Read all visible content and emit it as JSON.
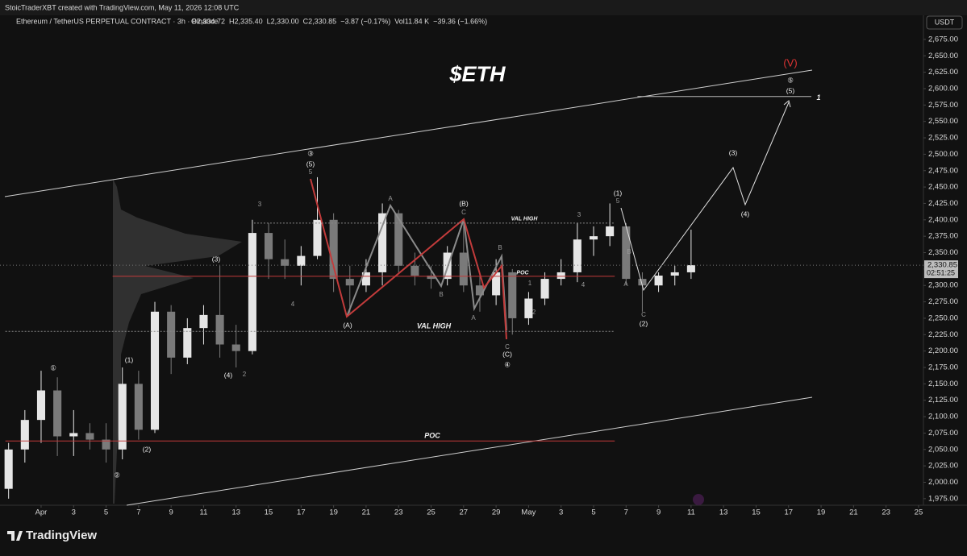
{
  "chart_data": {
    "type": "candlestick",
    "credit": "StoicTraderXBT created with TradingView.com, May 11, 2026 12:08 UTC",
    "symbol": "Ethereum / TetherUS PERPETUAL CONTRACT · 3h · Binance",
    "ohlc_text": [
      "O2,334.72",
      "H2,335.40",
      "L2,330.00",
      "C2,330.85",
      "−3.87 (−0.17%)",
      "Vol11.84 K",
      "−39.36 (−1.66%)"
    ],
    "currency": "USDT",
    "logo": "TradingView",
    "countdown": "02:51:25",
    "last_price": {
      "value": 2330.85,
      "label": "2,330.85"
    },
    "title": "$ETH",
    "x": [
      -2,
      -1,
      0,
      1,
      2,
      3,
      4,
      5,
      6,
      7,
      8,
      9,
      10,
      11,
      12,
      13,
      14,
      15,
      16,
      17,
      18,
      19,
      20,
      21,
      22,
      23,
      24,
      25,
      26,
      27,
      28,
      29,
      30,
      31,
      32,
      33,
      34,
      35,
      36,
      37,
      38,
      39,
      40
    ],
    "open": [
      1990,
      2050,
      2095,
      2140,
      2070,
      2075,
      2065,
      2050,
      2150,
      2080,
      2260,
      2190,
      2235,
      2255,
      2210,
      2200,
      2380,
      2340,
      2330,
      2345,
      2400,
      2310,
      2300,
      2320,
      2410,
      2330,
      2315,
      2310,
      2350,
      2300,
      2285,
      2320,
      2250,
      2280,
      2310,
      2320,
      2370,
      2375,
      2390,
      2310,
      2300,
      2315,
      2320
    ],
    "high": [
      2060,
      2110,
      2170,
      2160,
      2110,
      2090,
      2090,
      2175,
      2170,
      2275,
      2270,
      2250,
      2270,
      2330,
      2240,
      2400,
      2395,
      2370,
      2360,
      2465,
      2410,
      2330,
      2340,
      2425,
      2415,
      2350,
      2330,
      2360,
      2400,
      2320,
      2340,
      2325,
      2290,
      2320,
      2340,
      2395,
      2390,
      2425,
      2395,
      2320,
      2320,
      2330,
      2385
    ],
    "low": [
      1975,
      2030,
      2060,
      2040,
      2040,
      2050,
      2030,
      2035,
      2065,
      2075,
      2165,
      2180,
      2210,
      2190,
      2175,
      2195,
      2310,
      2310,
      2300,
      2340,
      2290,
      2255,
      2290,
      2300,
      2320,
      2300,
      2295,
      2300,
      2290,
      2260,
      2270,
      2225,
      2240,
      2270,
      2300,
      2305,
      2345,
      2360,
      2300,
      2260,
      2290,
      2300,
      2310
    ],
    "close": [
      2050,
      2095,
      2140,
      2070,
      2075,
      2065,
      2050,
      2150,
      2080,
      2260,
      2190,
      2235,
      2255,
      2210,
      2200,
      2380,
      2340,
      2330,
      2345,
      2400,
      2310,
      2300,
      2320,
      2410,
      2330,
      2315,
      2310,
      2350,
      2300,
      2285,
      2320,
      2250,
      2280,
      2310,
      2320,
      2370,
      2375,
      2390,
      2310,
      2300,
      2315,
      2320,
      2330.85
    ],
    "up_color": "#e6e6e6",
    "down_color": "#7a7a7a",
    "xlim": [
      -2.53,
      54.3
    ],
    "xticks": [
      {
        "value": 0,
        "label": "Apr"
      },
      {
        "value": 2,
        "label": "3"
      },
      {
        "value": 4,
        "label": "5"
      },
      {
        "value": 6,
        "label": "7"
      },
      {
        "value": 8,
        "label": "9"
      },
      {
        "value": 10,
        "label": "11"
      },
      {
        "value": 12,
        "label": "13"
      },
      {
        "value": 14,
        "label": "15"
      },
      {
        "value": 16,
        "label": "17"
      },
      {
        "value": 18,
        "label": "19"
      },
      {
        "value": 20,
        "label": "21"
      },
      {
        "value": 22,
        "label": "23"
      },
      {
        "value": 24,
        "label": "25"
      },
      {
        "value": 26,
        "label": "27"
      },
      {
        "value": 28,
        "label": "29"
      },
      {
        "value": 30,
        "label": "May"
      },
      {
        "value": 32,
        "label": "3"
      },
      {
        "value": 34,
        "label": "5"
      },
      {
        "value": 36,
        "label": "7"
      },
      {
        "value": 38,
        "label": "9"
      },
      {
        "value": 40,
        "label": "11"
      },
      {
        "value": 42,
        "label": "13"
      },
      {
        "value": 44,
        "label": "15"
      },
      {
        "value": 46,
        "label": "17"
      },
      {
        "value": 48,
        "label": "19"
      },
      {
        "value": 50,
        "label": "21"
      },
      {
        "value": 52,
        "label": "23"
      },
      {
        "value": 54,
        "label": "25"
      }
    ],
    "ylim": [
      1965,
      2689.6
    ],
    "yticks": [
      {
        "value": 1975,
        "label": "1,975.00"
      },
      {
        "value": 2000,
        "label": "2,000.00"
      },
      {
        "value": 2025,
        "label": "2,025.00"
      },
      {
        "value": 2050,
        "label": "2,050.00"
      },
      {
        "value": 2075,
        "label": "2,075.00"
      },
      {
        "value": 2100,
        "label": "2,100.00"
      },
      {
        "value": 2125,
        "label": "2,125.00"
      },
      {
        "value": 2150,
        "label": "2,150.00"
      },
      {
        "value": 2175,
        "label": "2,175.00"
      },
      {
        "value": 2200,
        "label": "2,200.00"
      },
      {
        "value": 2225,
        "label": "2,225.00"
      },
      {
        "value": 2250,
        "label": "2,250.00"
      },
      {
        "value": 2275,
        "label": "2,275.00"
      },
      {
        "value": 2300,
        "label": "2,300.00"
      },
      {
        "value": 2325,
        "label": "2,325.00"
      },
      {
        "value": 2350,
        "label": "2,350.00"
      },
      {
        "value": 2375,
        "label": "2,375.00"
      },
      {
        "value": 2400,
        "label": "2,400.00"
      },
      {
        "value": 2425,
        "label": "2,425.00"
      },
      {
        "value": 2450,
        "label": "2,450.00"
      },
      {
        "value": 2475,
        "label": "2,475.00"
      },
      {
        "value": 2500,
        "label": "2,500.00"
      },
      {
        "value": 2525,
        "label": "2,525.00"
      },
      {
        "value": 2550,
        "label": "2,550.00"
      },
      {
        "value": 2575,
        "label": "2,575.00"
      },
      {
        "value": 2600,
        "label": "2,600.00"
      },
      {
        "value": 2625,
        "label": "2,625.00"
      },
      {
        "value": 2650,
        "label": "2,650.00"
      },
      {
        "value": 2675,
        "label": "2,675.00"
      }
    ],
    "grid": false,
    "levels": [
      {
        "value": 2395,
        "label": "VAL HIGH",
        "color": "#888888",
        "dash": true,
        "x": [
          13.1,
          35.3
        ]
      },
      {
        "value": 2314,
        "label": "POC",
        "color": "#c23b3b",
        "dash": false,
        "x": [
          4.4,
          35.3
        ]
      },
      {
        "value": 2230,
        "label": "VAL HIGH",
        "color": "#888888",
        "dash": true,
        "x": [
          -2.2,
          35.3
        ]
      },
      {
        "value": 2063,
        "label": "POC",
        "color": "#c23b3b",
        "dash": false,
        "x": [
          -2.2,
          35.3
        ]
      },
      {
        "value": 2588,
        "label": "1",
        "color": "#bbbbbb",
        "dash": false,
        "x": [
          36.7,
          47.4
        ]
      }
    ],
    "annotations": [
      "(V)",
      "⑤",
      "(5)",
      "③",
      "(5)",
      "5",
      "3",
      "(3)",
      "(4)",
      "2",
      "①",
      "(1)",
      "(2)",
      "②",
      "4",
      "(A)",
      "A",
      "B",
      "(B)",
      "C",
      "B",
      "A",
      "2",
      "1",
      "(C)",
      "C",
      "④",
      "3",
      "4",
      "(1)",
      "5",
      "A",
      "B",
      "C",
      "(2)",
      "(3)",
      "(4)"
    ]
  }
}
